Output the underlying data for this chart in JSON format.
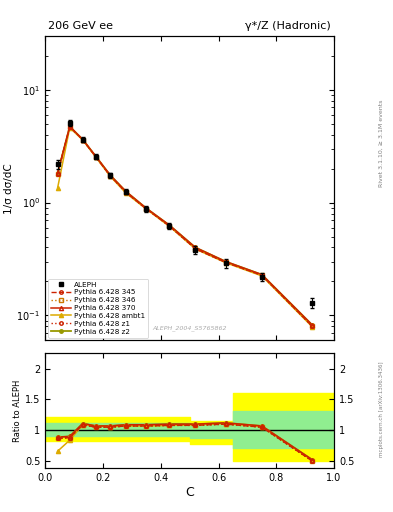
{
  "title_left": "206 GeV ee",
  "title_right": "γ*/Z (Hadronic)",
  "ylabel_main": "1/σ dσ/dC",
  "ylabel_ratio": "Ratio to ALEPH",
  "xlabel": "C",
  "rivet_label": "Rivet 3.1.10, ≥ 3.1M events",
  "arxiv_label": "mcplots.cern.ch [arXiv:1306.3436]",
  "ref_label": "ALEPH_2004_S5765862",
  "aleph_x": [
    0.043,
    0.085,
    0.13,
    0.175,
    0.225,
    0.28,
    0.35,
    0.43,
    0.52,
    0.625,
    0.75,
    0.925
  ],
  "aleph_y": [
    2.2,
    5.1,
    3.6,
    2.55,
    1.75,
    1.25,
    0.88,
    0.62,
    0.38,
    0.29,
    0.22,
    0.13
  ],
  "aleph_yerr": [
    0.2,
    0.3,
    0.18,
    0.13,
    0.09,
    0.07,
    0.05,
    0.04,
    0.03,
    0.025,
    0.02,
    0.013
  ],
  "mc_x": [
    0.043,
    0.085,
    0.13,
    0.175,
    0.225,
    0.28,
    0.35,
    0.43,
    0.52,
    0.625,
    0.75,
    0.925
  ],
  "pythia345_y": [
    1.8,
    4.7,
    3.6,
    2.55,
    1.73,
    1.23,
    0.88,
    0.62,
    0.39,
    0.295,
    0.227,
    0.08
  ],
  "pythia346_y": [
    1.8,
    4.7,
    3.6,
    2.55,
    1.73,
    1.23,
    0.88,
    0.62,
    0.39,
    0.295,
    0.227,
    0.08
  ],
  "pythia370_y": [
    1.82,
    4.72,
    3.62,
    2.57,
    1.75,
    1.25,
    0.89,
    0.63,
    0.4,
    0.3,
    0.23,
    0.082
  ],
  "pythia_ambt1_y": [
    1.35,
    4.6,
    3.58,
    2.53,
    1.71,
    1.21,
    0.875,
    0.615,
    0.388,
    0.293,
    0.224,
    0.079
  ],
  "pythia_z1_y": [
    1.8,
    4.7,
    3.6,
    2.55,
    1.73,
    1.23,
    0.88,
    0.62,
    0.39,
    0.295,
    0.227,
    0.08
  ],
  "pythia_z2_y": [
    1.82,
    4.72,
    3.62,
    2.57,
    1.75,
    1.25,
    0.89,
    0.63,
    0.4,
    0.3,
    0.23,
    0.082
  ],
  "ratio_x": [
    0.043,
    0.085,
    0.13,
    0.175,
    0.225,
    0.28,
    0.35,
    0.43,
    0.52,
    0.625,
    0.75,
    0.925
  ],
  "ratio_345": [
    0.87,
    0.88,
    1.09,
    1.05,
    1.05,
    1.07,
    1.07,
    1.08,
    1.08,
    1.1,
    1.05,
    0.5
  ],
  "ratio_346": [
    0.87,
    0.88,
    1.09,
    1.05,
    1.05,
    1.07,
    1.07,
    1.08,
    1.08,
    1.1,
    1.05,
    0.5
  ],
  "ratio_370": [
    0.89,
    0.9,
    1.11,
    1.07,
    1.07,
    1.09,
    1.09,
    1.1,
    1.1,
    1.12,
    1.07,
    0.52
  ],
  "ratio_ambt1": [
    0.66,
    0.84,
    1.09,
    1.07,
    1.06,
    1.07,
    1.07,
    1.08,
    1.09,
    1.11,
    1.06,
    0.51
  ],
  "ratio_z1": [
    0.87,
    0.88,
    1.09,
    1.05,
    1.05,
    1.07,
    1.07,
    1.08,
    1.08,
    1.1,
    1.05,
    0.5
  ],
  "ratio_z2": [
    0.89,
    0.9,
    1.11,
    1.07,
    1.07,
    1.09,
    1.09,
    1.1,
    1.1,
    1.12,
    1.07,
    0.52
  ],
  "color_345": "#cc2200",
  "color_346": "#cc7700",
  "color_370": "#cc2200",
  "color_ambt1": "#ddaa00",
  "color_z1": "#cc2200",
  "color_z2": "#999900",
  "ylim_main": [
    0.06,
    30
  ],
  "ylim_ratio": [
    0.38,
    2.25
  ],
  "background_color": "#ffffff"
}
